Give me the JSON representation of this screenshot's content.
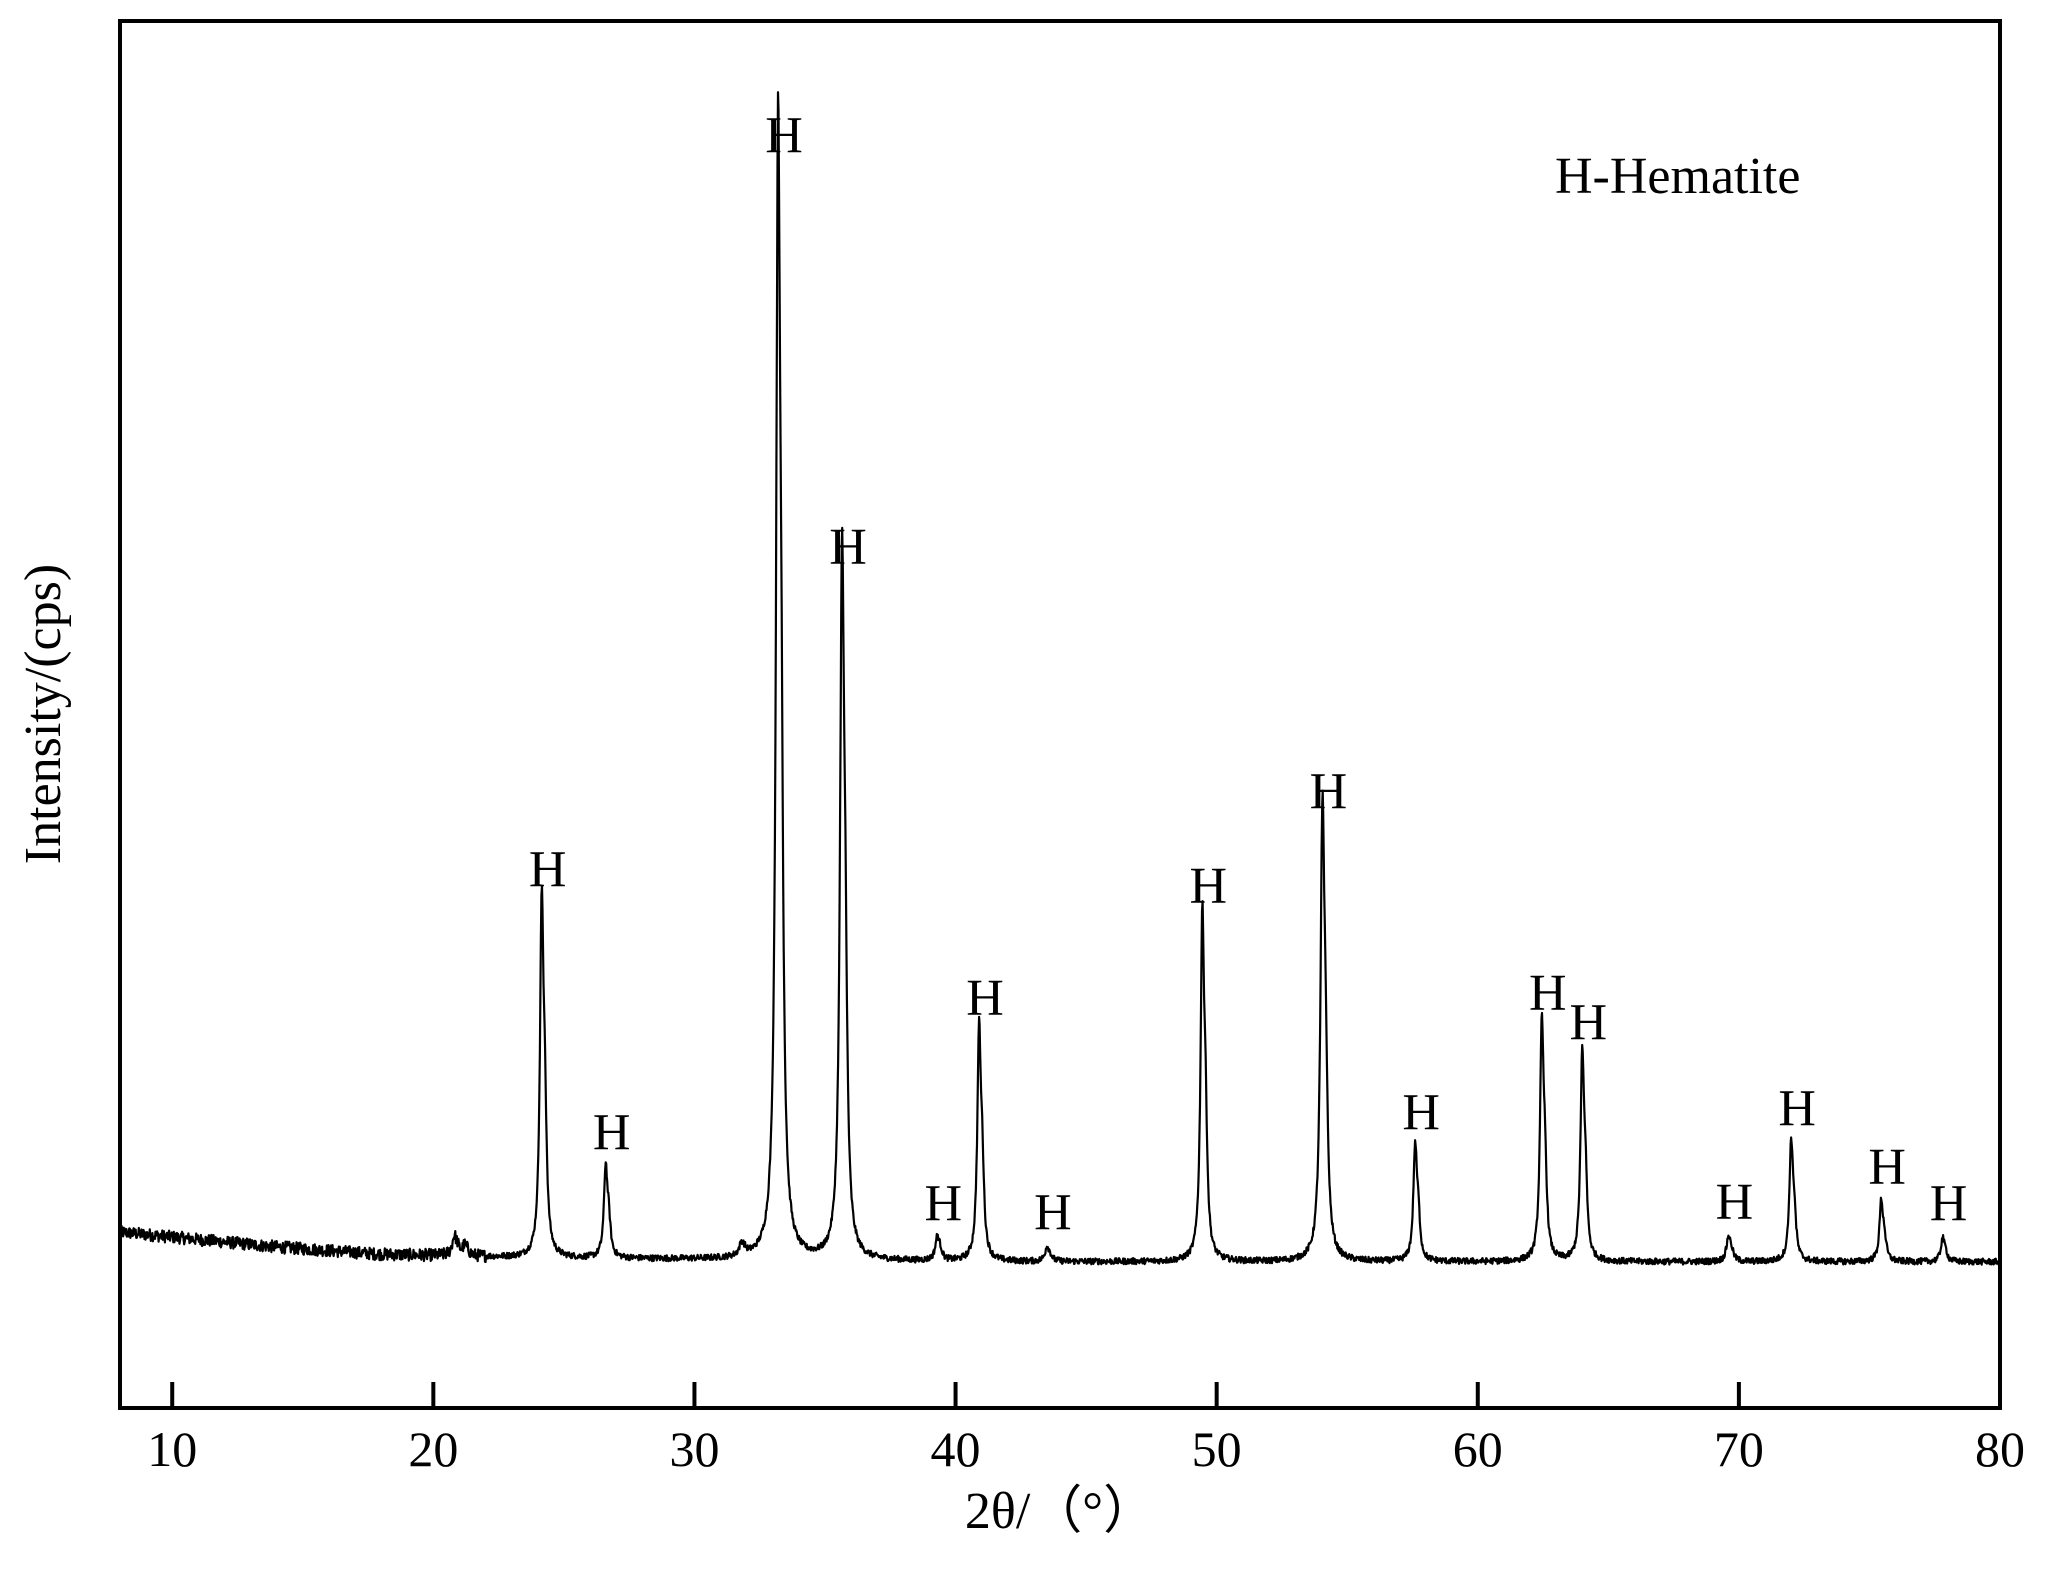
{
  "chart_data": {
    "type": "line",
    "title": "",
    "xlabel": "2θ/（°）",
    "ylabel": "Intensity/(cps)",
    "legend_text": "H-Hematite",
    "xlim": [
      8,
      80
    ],
    "ylim": [
      -120,
      1000
    ],
    "y_ticks_shown": false,
    "x_ticks": [
      10,
      20,
      30,
      40,
      50,
      60,
      70,
      80
    ],
    "x_tick_labels": [
      "10",
      "20",
      "30",
      "40",
      "50",
      "60",
      "70",
      "80"
    ],
    "colors": {
      "line": "#000000",
      "frame": "#000000"
    },
    "baseline": [
      [
        8,
        22
      ],
      [
        10,
        18
      ],
      [
        12,
        14
      ],
      [
        14,
        10
      ],
      [
        16,
        7
      ],
      [
        18,
        4
      ],
      [
        20,
        3
      ],
      [
        22,
        2
      ],
      [
        24,
        1
      ],
      [
        30,
        0
      ],
      [
        40,
        -2
      ],
      [
        50,
        -2
      ],
      [
        60,
        -2
      ],
      [
        70,
        -2
      ],
      [
        80,
        -2
      ]
    ],
    "peaks": [
      {
        "x": 20.8,
        "height": 14,
        "width": 0.1,
        "label": ""
      },
      {
        "x": 21.2,
        "height": 7,
        "width": 0.1,
        "label": ""
      },
      {
        "x": 24.15,
        "height": 272,
        "width": 0.08,
        "label": "H"
      },
      {
        "x": 26.6,
        "height": 70,
        "width": 0.08,
        "label": "H"
      },
      {
        "x": 31.8,
        "height": 9,
        "width": 0.1,
        "label": ""
      },
      {
        "x": 33.2,
        "height": 838,
        "width": 0.09,
        "label": "H"
      },
      {
        "x": 35.65,
        "height": 522,
        "width": 0.09,
        "label": "H"
      },
      {
        "x": 39.3,
        "height": 18,
        "width": 0.09,
        "label": "H"
      },
      {
        "x": 40.9,
        "height": 176,
        "width": 0.08,
        "label": "H"
      },
      {
        "x": 43.5,
        "height": 11,
        "width": 0.09,
        "label": "H"
      },
      {
        "x": 49.45,
        "height": 262,
        "width": 0.08,
        "label": "H"
      },
      {
        "x": 54.05,
        "height": 335,
        "width": 0.09,
        "label": "H"
      },
      {
        "x": 57.6,
        "height": 88,
        "width": 0.08,
        "label": "H"
      },
      {
        "x": 62.45,
        "height": 180,
        "width": 0.08,
        "label": "H"
      },
      {
        "x": 64.0,
        "height": 157,
        "width": 0.08,
        "label": "H"
      },
      {
        "x": 69.6,
        "height": 19,
        "width": 0.09,
        "label": "H"
      },
      {
        "x": 72.0,
        "height": 91,
        "width": 0.08,
        "label": "H"
      },
      {
        "x": 75.45,
        "height": 46,
        "width": 0.08,
        "label": "H"
      },
      {
        "x": 77.8,
        "height": 18,
        "width": 0.08,
        "label": "H"
      }
    ]
  }
}
